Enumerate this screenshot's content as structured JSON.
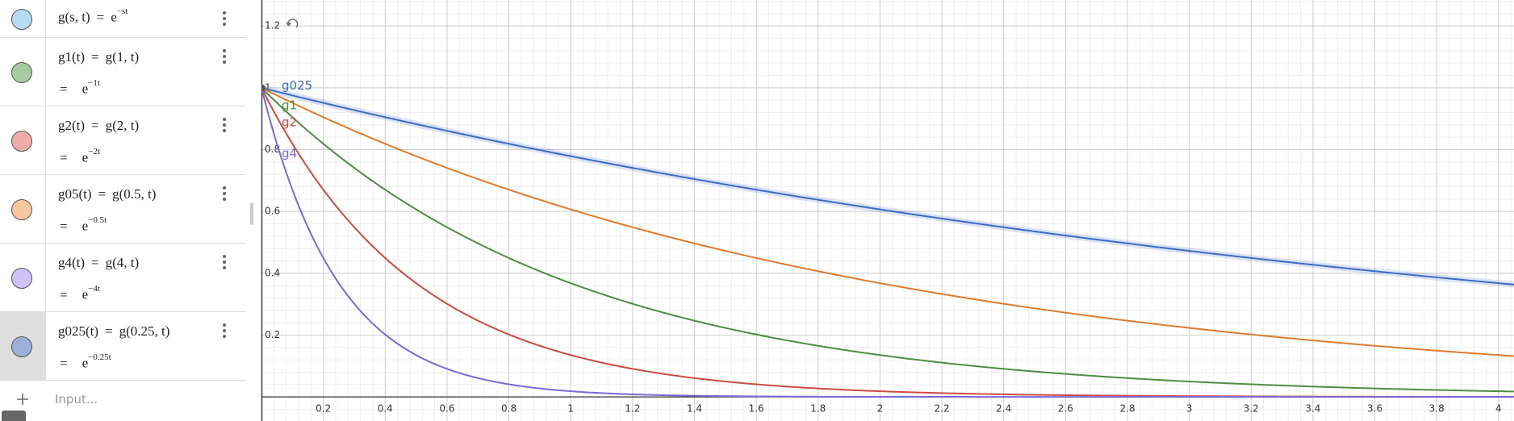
{
  "algebra": {
    "equals": "=",
    "base": "e",
    "input_placeholder": "Input...",
    "entries": [
      {
        "color": "#b5dcf3",
        "definition": "g(s, t)",
        "exponent": "−st"
      },
      {
        "color": "#a8cba1",
        "name": "g1(t)",
        "definition": "g(1, t)",
        "exponent": "−1t"
      },
      {
        "color": "#f2abab",
        "name": "g2(t)",
        "definition": "g(2, t)",
        "exponent": "−2t"
      },
      {
        "color": "#f5c8a2",
        "name": "g05(t)",
        "definition": "g(0.5, t)",
        "exponent": "−0.5t"
      },
      {
        "color": "#cfc3f5",
        "name": "g4(t)",
        "definition": "g(4, t)",
        "exponent": "−4t"
      },
      {
        "color": "#9db0da",
        "name": "g025(t)",
        "definition": "g(0.25, t)",
        "exponent": "−0.25t"
      }
    ]
  },
  "graph": {
    "xlim": [
      0,
      4.05
    ],
    "ylim": [
      -0.078,
      1.284
    ],
    "xticks": [
      0.2,
      0.4,
      0.6,
      0.8,
      1,
      1.2,
      1.4,
      1.6,
      1.8,
      2,
      2.2,
      2.4,
      2.6,
      2.8,
      3,
      3.2,
      3.4,
      3.6,
      3.8,
      4
    ],
    "yticks": [
      0.2,
      0.4,
      0.6,
      0.8,
      1,
      1.2
    ],
    "grid": true,
    "curves": [
      {
        "name": "g025",
        "rate": 0.25,
        "color": "#3d6cc6",
        "label_visible": true
      },
      {
        "name": "g1",
        "rate": 1,
        "color": "#4f8d43",
        "label_visible": true
      },
      {
        "name": "g2",
        "rate": 2,
        "color": "#cc4c43",
        "label_visible": true
      },
      {
        "name": "g05",
        "rate": 0.5,
        "color": "#e07b2e",
        "label_visible": false
      },
      {
        "name": "g4",
        "rate": 4,
        "color": "#7b69d8",
        "label_visible": true
      }
    ]
  }
}
